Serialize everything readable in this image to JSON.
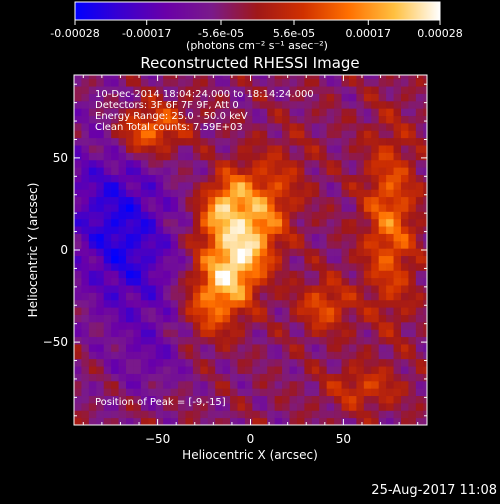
{
  "colorbar": {
    "tick_labels": [
      "-0.00028",
      "-0.00017",
      "-5.6e-05",
      "5.6e-05",
      "0.00017",
      "0.00028"
    ],
    "tick_values": [
      -0.00028,
      -0.00017,
      -5.6e-05,
      5.6e-05,
      0.00017,
      0.00028
    ],
    "range": [
      -0.00028,
      0.00028
    ],
    "unit_label": "(photons cm⁻² s⁻¹ asec⁻²)",
    "gradient_colors": [
      "#0000ff",
      "#3a00d0",
      "#6a00a8",
      "#7a1a8a",
      "#a01818",
      "#d03000",
      "#ff7000",
      "#ffc040",
      "#ffffff"
    ]
  },
  "chart_data": {
    "type": "heatmap",
    "title": "Reconstructed RHESSI Image",
    "xlabel": "Heliocentric X (arcsec)",
    "ylabel": "Heliocentric Y (arcsec)",
    "xlim": [
      -95,
      95
    ],
    "ylim": [
      -95,
      95
    ],
    "xticks": [
      -50,
      0,
      50
    ],
    "yticks": [
      -50,
      0,
      50
    ],
    "x_tick_labels": [
      "−50",
      "0",
      "50"
    ],
    "y_tick_labels": [
      "−50",
      "0",
      "50"
    ],
    "peak": [
      -9,
      -15
    ]
  },
  "annotations": [
    "10-Dec-2014 18:04:24.000 to 18:14:24.000",
    "Detectors: 3F 6F 7F 9F, Att 0",
    "Energy Range: 25.0 - 50.0 keV",
    "Clean    Total counts: 7.59E+03"
  ],
  "peak_label": "Position of Peak = [-9,-15]",
  "timestamp": "25-Aug-2017 11:08"
}
